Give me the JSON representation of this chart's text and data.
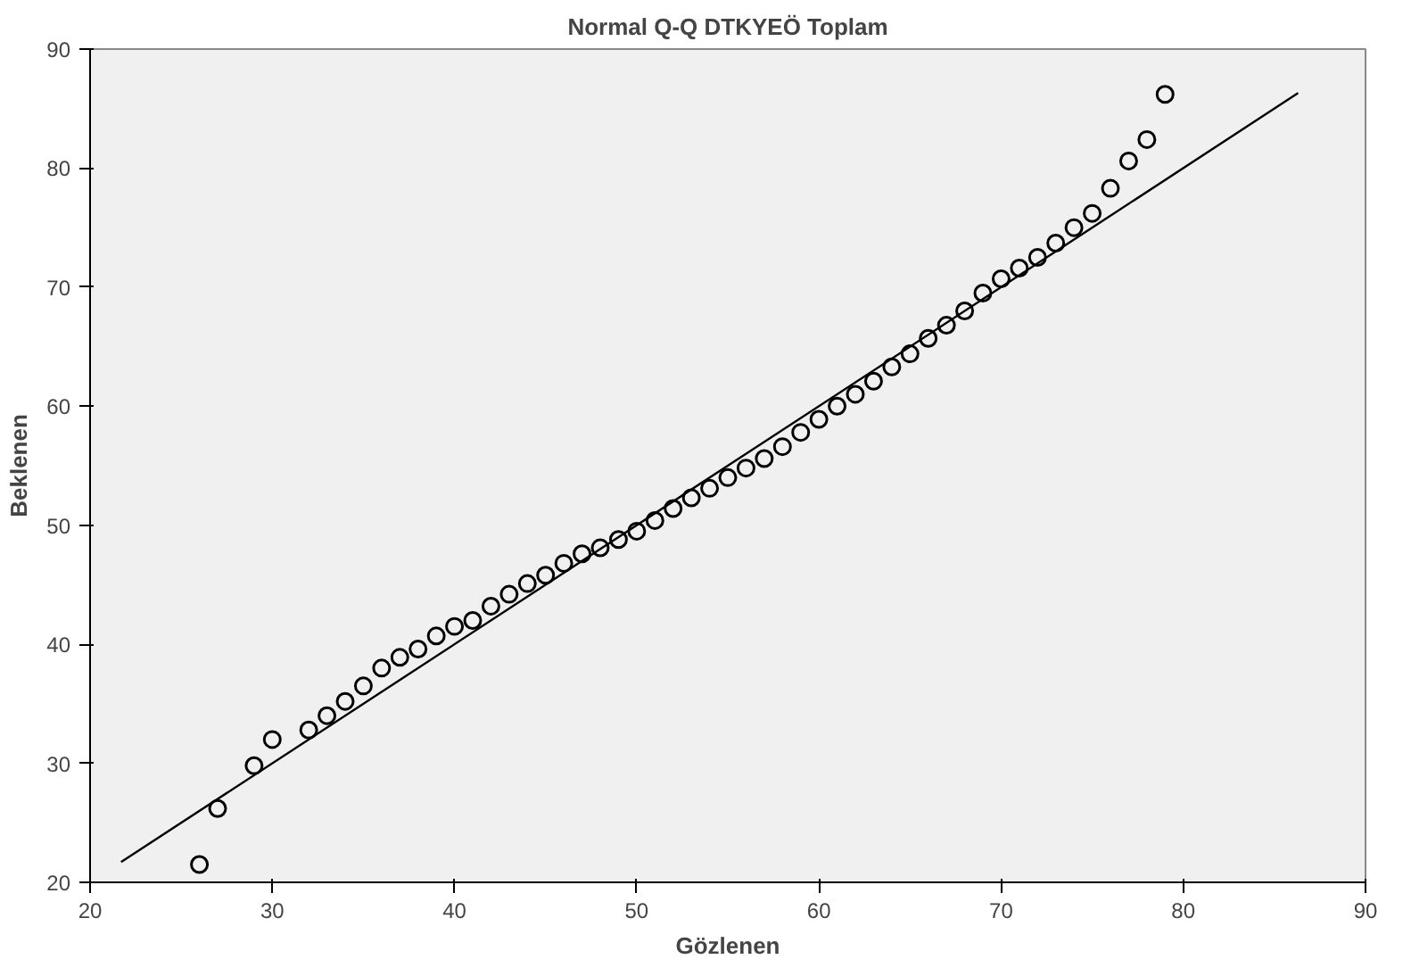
{
  "chart_data": {
    "type": "scatter",
    "title": "Normal Q-Q DTKYEÖ Toplam",
    "xlabel": "Gözlenen",
    "ylabel": "Beklenen",
    "xlim": [
      20,
      90
    ],
    "ylim": [
      20,
      90
    ],
    "xticks": [
      20,
      30,
      40,
      50,
      60,
      70,
      80,
      90
    ],
    "yticks": [
      20,
      30,
      40,
      50,
      60,
      70,
      80,
      90
    ],
    "grid": false,
    "series": [
      {
        "marker": "circle",
        "color": "#000000",
        "x": [
          26,
          27,
          29,
          30,
          32,
          33,
          34,
          35,
          36,
          37,
          38,
          39,
          40,
          41,
          42,
          43,
          44,
          45,
          46,
          47,
          48,
          49,
          50,
          51,
          52,
          53,
          54,
          55,
          56,
          57,
          58,
          59,
          60,
          61,
          62,
          63,
          64,
          65,
          66,
          67,
          68,
          69,
          70,
          71,
          72,
          73,
          74,
          75,
          76,
          77,
          78,
          79
        ],
        "values": [
          21.5,
          26.2,
          29.8,
          32,
          32.8,
          34,
          35.2,
          36.5,
          38,
          38.9,
          39.6,
          40.7,
          41.5,
          42,
          43.2,
          44.2,
          45.1,
          45.8,
          46.8,
          47.6,
          48.1,
          48.8,
          49.5,
          50.4,
          51.4,
          52.3,
          53.1,
          54,
          54.8,
          55.6,
          56.6,
          57.8,
          58.9,
          60,
          61,
          62.1,
          63.3,
          64.4,
          65.7,
          66.8,
          68,
          69.5,
          70.7,
          71.6,
          72.5,
          73.7,
          75,
          76.2,
          78.3,
          80.6,
          82.4,
          86.2
        ]
      },
      {
        "type": "line",
        "marker": "none",
        "color": "#000000",
        "x": [
          21.7,
          86.3
        ],
        "values": [
          21.7,
          86.3
        ]
      }
    ]
  }
}
